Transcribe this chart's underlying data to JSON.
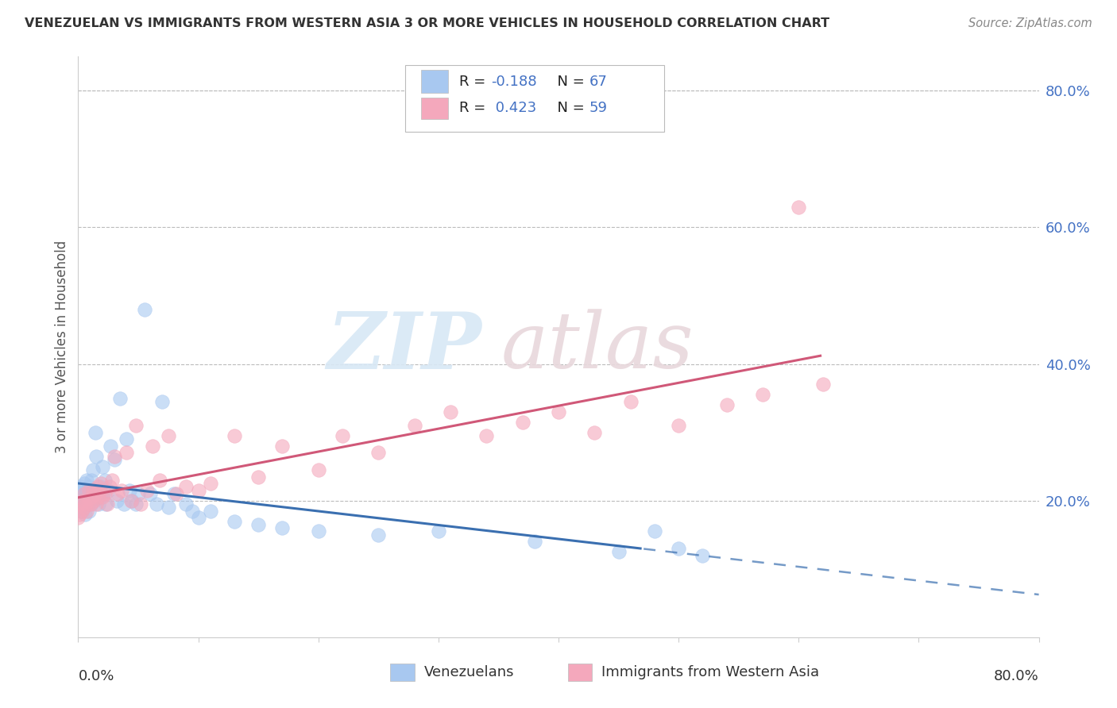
{
  "title": "VENEZUELAN VS IMMIGRANTS FROM WESTERN ASIA 3 OR MORE VEHICLES IN HOUSEHOLD CORRELATION CHART",
  "source": "Source: ZipAtlas.com",
  "legend_entry1": "Venezuelans",
  "legend_entry2": "Immigrants from Western Asia",
  "color_blue": "#A8C8F0",
  "color_pink": "#F4A8BC",
  "color_blue_line": "#3A6FB0",
  "color_pink_line": "#D05878",
  "watermark_zip": "ZIP",
  "watermark_atlas": "atlas",
  "R1": -0.188,
  "N1": 67,
  "R2": 0.423,
  "N2": 59,
  "xmin": 0.0,
  "xmax": 0.8,
  "ymin": 0.0,
  "ymax": 0.85,
  "right_yticks": [
    "80.0%",
    "60.0%",
    "40.0%",
    "20.0%"
  ],
  "right_ytick_vals": [
    0.8,
    0.6,
    0.4,
    0.2
  ],
  "ylabel": "3 or more Vehicles in Household",
  "blue_line_x_end": 0.52,
  "blue_line_solid_end": 0.47,
  "pink_line_x_end": 0.62,
  "ven_x": [
    0.0,
    0.001,
    0.002,
    0.002,
    0.003,
    0.003,
    0.004,
    0.004,
    0.005,
    0.005,
    0.006,
    0.006,
    0.007,
    0.007,
    0.008,
    0.008,
    0.009,
    0.009,
    0.01,
    0.01,
    0.011,
    0.011,
    0.012,
    0.012,
    0.013,
    0.014,
    0.015,
    0.016,
    0.017,
    0.018,
    0.019,
    0.02,
    0.021,
    0.022,
    0.023,
    0.025,
    0.027,
    0.03,
    0.032,
    0.035,
    0.038,
    0.04,
    0.043,
    0.045,
    0.048,
    0.05,
    0.055,
    0.06,
    0.065,
    0.07,
    0.075,
    0.08,
    0.09,
    0.095,
    0.1,
    0.11,
    0.13,
    0.15,
    0.17,
    0.2,
    0.25,
    0.3,
    0.38,
    0.45,
    0.48,
    0.5,
    0.52
  ],
  "ven_y": [
    0.19,
    0.21,
    0.195,
    0.22,
    0.185,
    0.205,
    0.2,
    0.215,
    0.195,
    0.225,
    0.18,
    0.21,
    0.2,
    0.23,
    0.195,
    0.215,
    0.185,
    0.22,
    0.2,
    0.21,
    0.23,
    0.195,
    0.215,
    0.245,
    0.2,
    0.3,
    0.265,
    0.21,
    0.195,
    0.22,
    0.205,
    0.25,
    0.21,
    0.23,
    0.195,
    0.215,
    0.28,
    0.26,
    0.2,
    0.35,
    0.195,
    0.29,
    0.215,
    0.2,
    0.195,
    0.21,
    0.48,
    0.21,
    0.195,
    0.345,
    0.19,
    0.21,
    0.195,
    0.185,
    0.175,
    0.185,
    0.17,
    0.165,
    0.16,
    0.155,
    0.15,
    0.155,
    0.14,
    0.125,
    0.155,
    0.13,
    0.12
  ],
  "wa_x": [
    0.0,
    0.001,
    0.002,
    0.003,
    0.004,
    0.005,
    0.005,
    0.006,
    0.007,
    0.008,
    0.009,
    0.01,
    0.011,
    0.012,
    0.013,
    0.014,
    0.015,
    0.016,
    0.017,
    0.018,
    0.019,
    0.02,
    0.022,
    0.024,
    0.026,
    0.028,
    0.03,
    0.033,
    0.036,
    0.04,
    0.044,
    0.048,
    0.052,
    0.057,
    0.062,
    0.068,
    0.075,
    0.082,
    0.09,
    0.1,
    0.11,
    0.13,
    0.15,
    0.17,
    0.2,
    0.22,
    0.25,
    0.28,
    0.31,
    0.34,
    0.37,
    0.4,
    0.43,
    0.46,
    0.5,
    0.54,
    0.57,
    0.6,
    0.62
  ],
  "wa_y": [
    0.175,
    0.18,
    0.195,
    0.185,
    0.2,
    0.19,
    0.21,
    0.195,
    0.185,
    0.2,
    0.215,
    0.195,
    0.205,
    0.215,
    0.2,
    0.21,
    0.195,
    0.22,
    0.205,
    0.215,
    0.225,
    0.205,
    0.21,
    0.195,
    0.22,
    0.23,
    0.265,
    0.21,
    0.215,
    0.27,
    0.2,
    0.31,
    0.195,
    0.215,
    0.28,
    0.23,
    0.295,
    0.21,
    0.22,
    0.215,
    0.225,
    0.295,
    0.235,
    0.28,
    0.245,
    0.295,
    0.27,
    0.31,
    0.33,
    0.295,
    0.315,
    0.33,
    0.3,
    0.345,
    0.31,
    0.34,
    0.355,
    0.63,
    0.37
  ]
}
